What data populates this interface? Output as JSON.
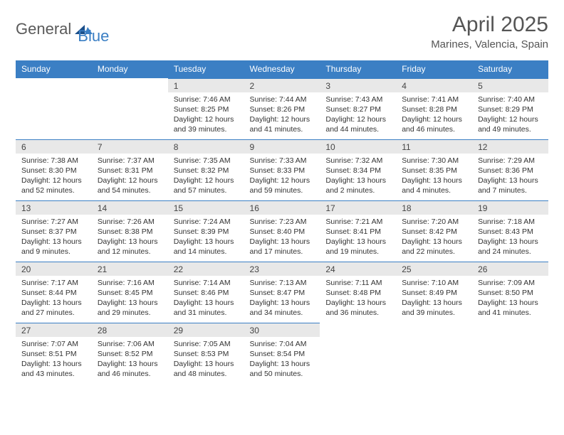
{
  "brand": {
    "part1": "General",
    "part2": "Blue",
    "accent": "#3b7fc4",
    "text_color": "#5a5a5a"
  },
  "title": "April 2025",
  "location": "Marines, Valencia, Spain",
  "header_bg": "#3b7fc4",
  "daynum_bg": "#e8e8e8",
  "columns": [
    "Sunday",
    "Monday",
    "Tuesday",
    "Wednesday",
    "Thursday",
    "Friday",
    "Saturday"
  ],
  "weeks": [
    [
      null,
      null,
      {
        "n": "1",
        "sr": "7:46 AM",
        "ss": "8:25 PM",
        "dl": "12 hours and 39 minutes."
      },
      {
        "n": "2",
        "sr": "7:44 AM",
        "ss": "8:26 PM",
        "dl": "12 hours and 41 minutes."
      },
      {
        "n": "3",
        "sr": "7:43 AM",
        "ss": "8:27 PM",
        "dl": "12 hours and 44 minutes."
      },
      {
        "n": "4",
        "sr": "7:41 AM",
        "ss": "8:28 PM",
        "dl": "12 hours and 46 minutes."
      },
      {
        "n": "5",
        "sr": "7:40 AM",
        "ss": "8:29 PM",
        "dl": "12 hours and 49 minutes."
      }
    ],
    [
      {
        "n": "6",
        "sr": "7:38 AM",
        "ss": "8:30 PM",
        "dl": "12 hours and 52 minutes."
      },
      {
        "n": "7",
        "sr": "7:37 AM",
        "ss": "8:31 PM",
        "dl": "12 hours and 54 minutes."
      },
      {
        "n": "8",
        "sr": "7:35 AM",
        "ss": "8:32 PM",
        "dl": "12 hours and 57 minutes."
      },
      {
        "n": "9",
        "sr": "7:33 AM",
        "ss": "8:33 PM",
        "dl": "12 hours and 59 minutes."
      },
      {
        "n": "10",
        "sr": "7:32 AM",
        "ss": "8:34 PM",
        "dl": "13 hours and 2 minutes."
      },
      {
        "n": "11",
        "sr": "7:30 AM",
        "ss": "8:35 PM",
        "dl": "13 hours and 4 minutes."
      },
      {
        "n": "12",
        "sr": "7:29 AM",
        "ss": "8:36 PM",
        "dl": "13 hours and 7 minutes."
      }
    ],
    [
      {
        "n": "13",
        "sr": "7:27 AM",
        "ss": "8:37 PM",
        "dl": "13 hours and 9 minutes."
      },
      {
        "n": "14",
        "sr": "7:26 AM",
        "ss": "8:38 PM",
        "dl": "13 hours and 12 minutes."
      },
      {
        "n": "15",
        "sr": "7:24 AM",
        "ss": "8:39 PM",
        "dl": "13 hours and 14 minutes."
      },
      {
        "n": "16",
        "sr": "7:23 AM",
        "ss": "8:40 PM",
        "dl": "13 hours and 17 minutes."
      },
      {
        "n": "17",
        "sr": "7:21 AM",
        "ss": "8:41 PM",
        "dl": "13 hours and 19 minutes."
      },
      {
        "n": "18",
        "sr": "7:20 AM",
        "ss": "8:42 PM",
        "dl": "13 hours and 22 minutes."
      },
      {
        "n": "19",
        "sr": "7:18 AM",
        "ss": "8:43 PM",
        "dl": "13 hours and 24 minutes."
      }
    ],
    [
      {
        "n": "20",
        "sr": "7:17 AM",
        "ss": "8:44 PM",
        "dl": "13 hours and 27 minutes."
      },
      {
        "n": "21",
        "sr": "7:16 AM",
        "ss": "8:45 PM",
        "dl": "13 hours and 29 minutes."
      },
      {
        "n": "22",
        "sr": "7:14 AM",
        "ss": "8:46 PM",
        "dl": "13 hours and 31 minutes."
      },
      {
        "n": "23",
        "sr": "7:13 AM",
        "ss": "8:47 PM",
        "dl": "13 hours and 34 minutes."
      },
      {
        "n": "24",
        "sr": "7:11 AM",
        "ss": "8:48 PM",
        "dl": "13 hours and 36 minutes."
      },
      {
        "n": "25",
        "sr": "7:10 AM",
        "ss": "8:49 PM",
        "dl": "13 hours and 39 minutes."
      },
      {
        "n": "26",
        "sr": "7:09 AM",
        "ss": "8:50 PM",
        "dl": "13 hours and 41 minutes."
      }
    ],
    [
      {
        "n": "27",
        "sr": "7:07 AM",
        "ss": "8:51 PM",
        "dl": "13 hours and 43 minutes."
      },
      {
        "n": "28",
        "sr": "7:06 AM",
        "ss": "8:52 PM",
        "dl": "13 hours and 46 minutes."
      },
      {
        "n": "29",
        "sr": "7:05 AM",
        "ss": "8:53 PM",
        "dl": "13 hours and 48 minutes."
      },
      {
        "n": "30",
        "sr": "7:04 AM",
        "ss": "8:54 PM",
        "dl": "13 hours and 50 minutes."
      },
      null,
      null,
      null
    ]
  ],
  "labels": {
    "sunrise": "Sunrise:",
    "sunset": "Sunset:",
    "daylight": "Daylight:"
  }
}
